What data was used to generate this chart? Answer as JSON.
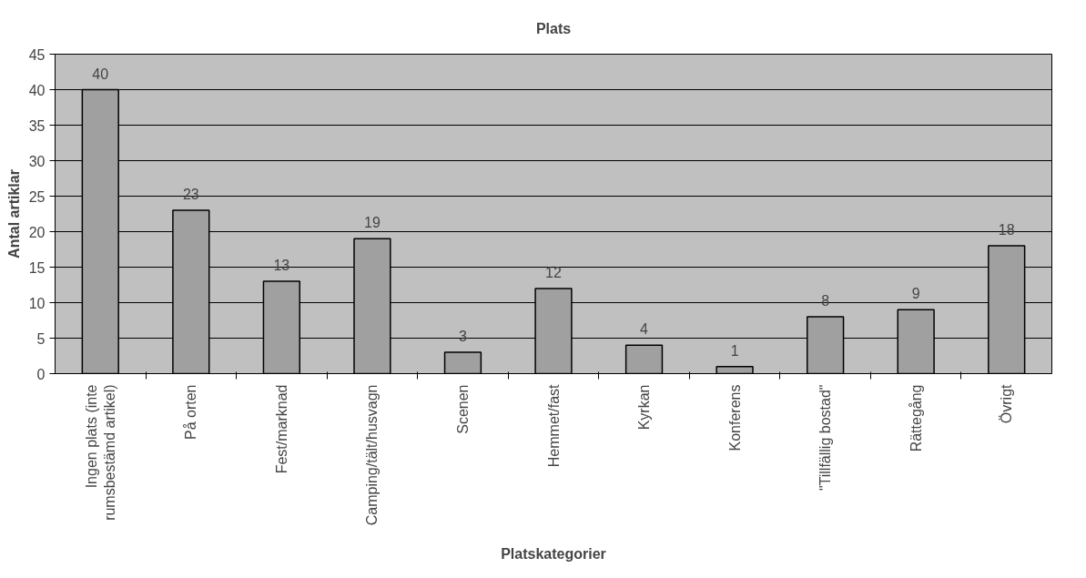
{
  "chart_data": {
    "type": "bar",
    "title": "Plats",
    "xlabel": "Platskategorier",
    "ylabel": "Antal artiklar",
    "categories": [
      "Ingen plats (inte rumsbestämd artikel)",
      "På orten",
      "Fest/marknad",
      "Camping/tält/husvagn",
      "Scenen",
      "Hemmet/fast",
      "Kyrkan",
      "Konferens",
      "\"Tillfällig bostad\"",
      "Rättegång",
      "Övrigt"
    ],
    "values": [
      40,
      23,
      13,
      19,
      3,
      12,
      4,
      1,
      8,
      9,
      18
    ],
    "color": "#a0a0a0",
    "ylim": [
      0,
      45
    ],
    "yticks": [
      0,
      5,
      10,
      15,
      20,
      25,
      30,
      35,
      40,
      45
    ],
    "grid": "y",
    "data_labels": true
  }
}
